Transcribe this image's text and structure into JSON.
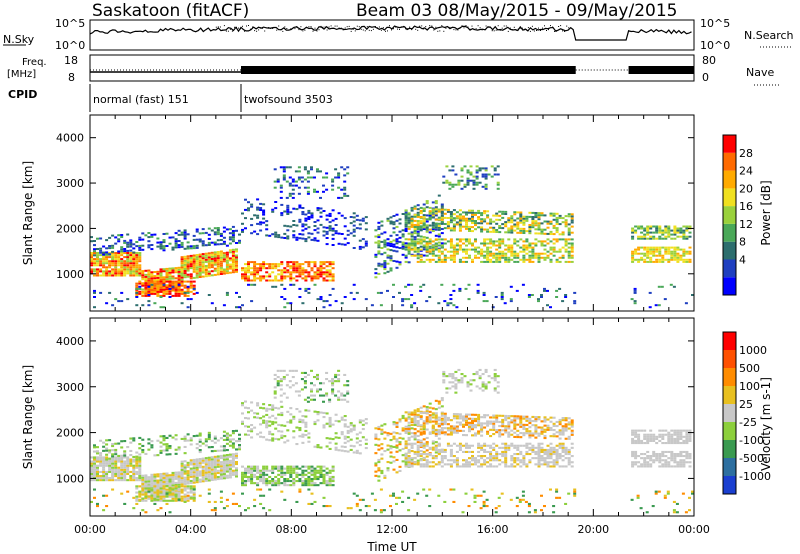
{
  "header": {
    "station": "Saskatoon (fitACF)",
    "beam_info": "Beam 03 08/May/2015 - 09/May/2015"
  },
  "strip_panels": {
    "noise_left_label": "N.Sky",
    "noise_left_ticks": [
      "10^5",
      "10^0"
    ],
    "noise_right_label": "N.Search",
    "noise_right_ticks": [
      "10^5",
      "10^0"
    ],
    "freq_label_1": "Freq.",
    "freq_label_2": "[MHz]",
    "freq_ticks": [
      "18",
      "8"
    ],
    "nave_label": "Nave",
    "nave_ticks": [
      "80",
      "0"
    ],
    "cpid_label": "CPID",
    "cpid_segments": [
      {
        "name": "normal (fast) 151",
        "start_hour": 0.0,
        "end_hour": 6.0
      },
      {
        "name": "twofsound 3503",
        "start_hour": 6.0,
        "end_hour": 24.0
      }
    ]
  },
  "chart_data": [
    {
      "type": "heatmap",
      "name": "power",
      "ylabel": "Slant Range [km]",
      "xlabel": "Time UT",
      "x_unit": "hour UT",
      "xlim": [
        0,
        24
      ],
      "ylim": [
        180,
        4500
      ],
      "x_ticks": [
        "00:00",
        "04:00",
        "08:00",
        "12:00",
        "16:00",
        "20:00",
        "00:00"
      ],
      "y_ticks": [
        "1000",
        "2000",
        "3000",
        "4000"
      ],
      "colorbar_label": "Power [dB]",
      "colorbar_ticks": [
        "4",
        "8",
        "12",
        "16",
        "20",
        "24",
        "28"
      ],
      "colorbar_colors": [
        "#0000ff",
        "#1f3fc0",
        "#2d6e6e",
        "#4aa858",
        "#9ad13c",
        "#f0e020",
        "#ffaa00",
        "#ff6a00",
        "#ff0000"
      ],
      "data_gap_hours": [
        19.3,
        21.4
      ]
    },
    {
      "type": "heatmap",
      "name": "velocity",
      "ylabel": "Slant Range [km]",
      "xlabel": "Time UT",
      "x_unit": "hour UT",
      "xlim": [
        0,
        24
      ],
      "ylim": [
        180,
        4500
      ],
      "x_ticks": [
        "00:00",
        "04:00",
        "08:00",
        "12:00",
        "16:00",
        "20:00",
        "00:00"
      ],
      "y_ticks": [
        "1000",
        "2000",
        "3000",
        "4000"
      ],
      "colorbar_label": "Velocity [m s-1]",
      "colorbar_ticks": [
        "1000",
        "500",
        "100",
        "25",
        "-25",
        "-100",
        "-500",
        "-1000"
      ],
      "colorbar_colors": [
        "#1a3fd0",
        "#2d6fa0",
        "#3a9a50",
        "#8ccf3c",
        "#c8c8c8",
        "#e8c020",
        "#ff8c00",
        "#ff5000",
        "#ff0000"
      ],
      "data_gap_hours": [
        19.3,
        21.4
      ]
    }
  ],
  "x_axis": {
    "label": "Time UT",
    "ticks": [
      "00:00",
      "04:00",
      "08:00",
      "12:00",
      "16:00",
      "20:00",
      "00:00"
    ]
  }
}
